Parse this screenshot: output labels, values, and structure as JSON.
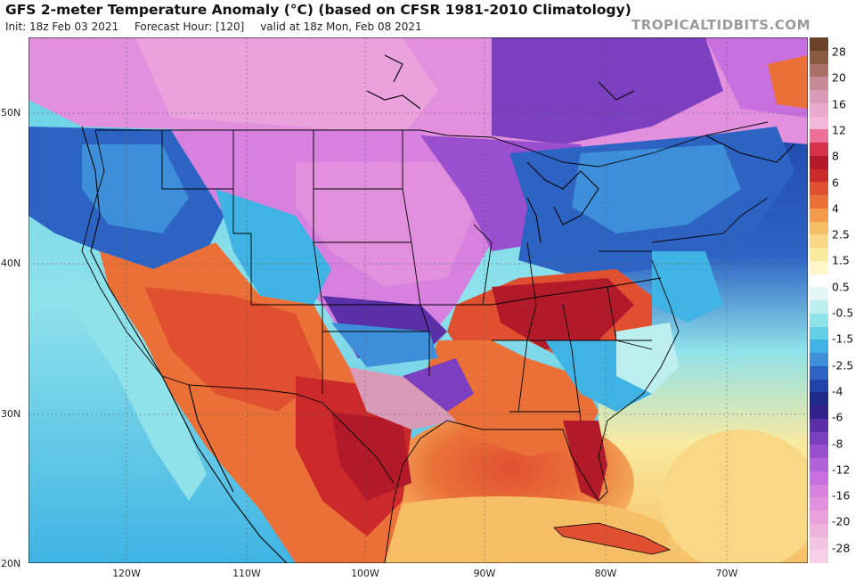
{
  "header": {
    "title": "GFS 2-meter Temperature Anomaly (°C) (based on CFSR 1981-2010 Climatology)",
    "init": "Init: 18z Feb 03 2021",
    "forecast_hour": "Forecast Hour: [120]",
    "valid": "valid at 18z Mon, Feb 08 2021",
    "brand": "TROPICALTIDBITS.COM"
  },
  "axes": {
    "lat_labels": [
      "50N",
      "40N",
      "30N",
      "20N"
    ],
    "lon_labels": [
      "120W",
      "110W",
      "100W",
      "90W",
      "80W",
      "70W"
    ]
  },
  "colorbar": {
    "labels": [
      "28",
      "20",
      "16",
      "12",
      "8",
      "6",
      "4",
      "2.5",
      "1.5",
      "0.5",
      "-0.5",
      "-1.5",
      "-2.5",
      "-4",
      "-6",
      "-8",
      "-12",
      "-16",
      "-20",
      "-28"
    ],
    "colors": [
      "#6b4328",
      "#8a5a40",
      "#a87067",
      "#c48a98",
      "#d99ab8",
      "#e8a9cc",
      "#f2b6d8",
      "#ee6f98",
      "#d6304a",
      "#b21a2a",
      "#cc2a2a",
      "#e05030",
      "#ea7038",
      "#f29a4a",
      "#f6bf66",
      "#f8d884",
      "#faea9e",
      "#fdf6c8",
      "#ffffff",
      "#e4f6f6",
      "#bdeef0",
      "#8fe2ea",
      "#62cfe6",
      "#3fb4e4",
      "#3c8fd8",
      "#2d64c4",
      "#1f43a8",
      "#1e2a8a",
      "#33208a",
      "#5a2fa8",
      "#7b3fbf",
      "#9a4fce",
      "#b060d8",
      "#c870e0",
      "#d880e0",
      "#e290de",
      "#eaa2dc",
      "#efb4de",
      "#f2c4e2",
      "#f5d0e8"
    ]
  }
}
